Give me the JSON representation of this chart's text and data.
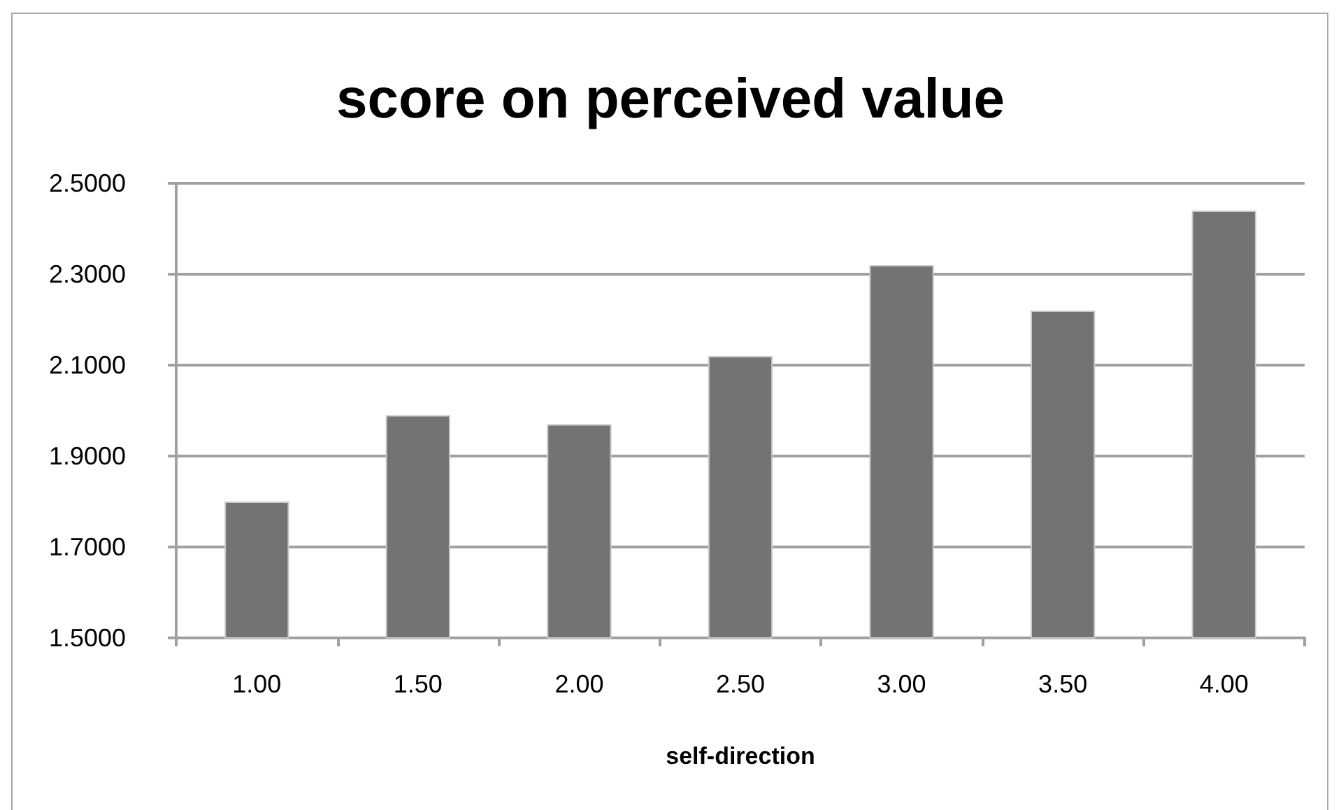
{
  "chart_data": {
    "type": "bar",
    "title": "score on perceived value",
    "xlabel": "self-direction",
    "categories": [
      "1.00",
      "1.50",
      "2.00",
      "2.50",
      "3.00",
      "3.50",
      "4.00"
    ],
    "values": [
      1.8,
      1.99,
      1.97,
      2.12,
      2.32,
      2.22,
      2.44
    ],
    "color": "#737373",
    "ylim": [
      1.5,
      2.5
    ],
    "yticks": [
      {
        "value": 1.5,
        "label": "1.5000"
      },
      {
        "value": 1.7,
        "label": "1.7000"
      },
      {
        "value": 1.9,
        "label": "1.9000"
      },
      {
        "value": 2.1,
        "label": "2.1000"
      },
      {
        "value": 2.3,
        "label": "2.3000"
      },
      {
        "value": 2.5,
        "label": "2.5000"
      }
    ],
    "grid": "y"
  }
}
